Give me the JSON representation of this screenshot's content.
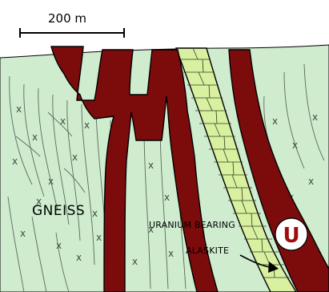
{
  "scale_bar": {
    "label": "200 m"
  },
  "labels": {
    "gneiss": "GNEISS",
    "ore_line1": "URANIUM BEARING",
    "ore_line2": "ALASKITE",
    "u_symbol": "U"
  },
  "colors": {
    "gneiss_fill": "#cfeccf",
    "alaskite_fill": "#7c0c0c",
    "marble_fill": "#d8f0a0",
    "outline": "#000000",
    "foliation": "#5a6a5a",
    "u_circle_fill": "#ffffff",
    "u_letter": "#a10d0d"
  },
  "icons": {
    "scale_bar": "scale-bar-icon",
    "arrow": "pointer-arrow-icon",
    "uranium": "uranium-symbol-icon"
  }
}
